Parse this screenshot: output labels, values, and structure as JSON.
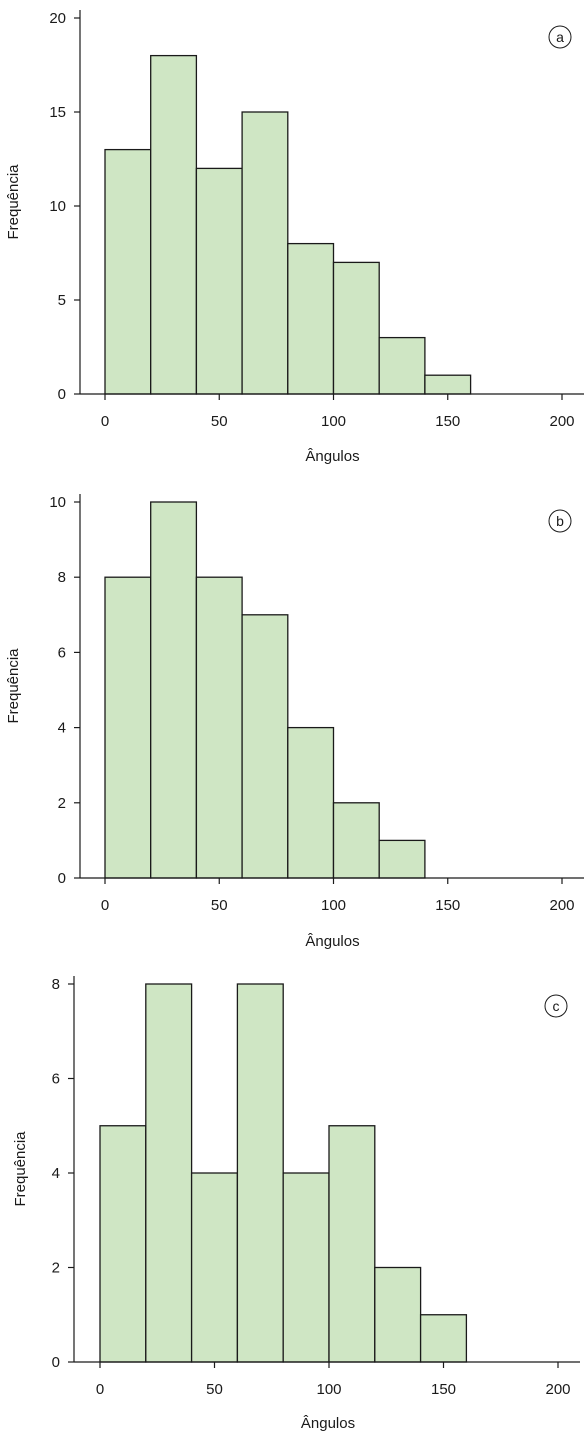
{
  "colors": {
    "bar_fill": "#cfe6c4",
    "bar_stroke": "#1a1a1a",
    "axis": "#1a1a1a"
  },
  "chart_data": [
    {
      "type": "bar",
      "panel_label": "a",
      "title": "",
      "xlabel": "Ângulos",
      "ylabel": "Frequência",
      "bin_edges": [
        0,
        20,
        40,
        60,
        80,
        100,
        120,
        140,
        160
      ],
      "values": [
        13,
        18,
        12,
        15,
        8,
        7,
        3,
        1
      ],
      "xlim": [
        -10,
        205
      ],
      "ylim": [
        0,
        20.5
      ],
      "xticks": [
        0,
        50,
        100,
        150,
        200
      ],
      "yticks": [
        0,
        5,
        10,
        15,
        20
      ],
      "xtick_labels": [
        "0",
        "50",
        "100",
        "150",
        "200"
      ],
      "ytick_labels": [
        "0",
        "5",
        "10",
        "15",
        "20"
      ],
      "grid": false,
      "legend": "none"
    },
    {
      "type": "bar",
      "panel_label": "b",
      "title": "",
      "xlabel": "Ângulos",
      "ylabel": "Frequência",
      "bin_edges": [
        0,
        20,
        40,
        60,
        80,
        100,
        120,
        140
      ],
      "values": [
        8,
        10,
        8,
        7,
        4,
        2,
        1
      ],
      "xlim": [
        -10,
        205
      ],
      "ylim": [
        0,
        10.5
      ],
      "xticks": [
        0,
        50,
        100,
        150,
        200
      ],
      "yticks": [
        0,
        2,
        4,
        6,
        8,
        10
      ],
      "xtick_labels": [
        "0",
        "50",
        "100",
        "150",
        "200"
      ],
      "ytick_labels": [
        "0",
        "2",
        "4",
        "6",
        "8",
        "10"
      ],
      "grid": false,
      "legend": "none"
    },
    {
      "type": "bar",
      "panel_label": "c",
      "title": "",
      "xlabel": "Ângulos",
      "ylabel": "Frequência",
      "bin_edges": [
        0,
        20,
        40,
        60,
        80,
        100,
        120,
        140,
        160
      ],
      "values": [
        5,
        8,
        4,
        8,
        4,
        5,
        2,
        1
      ],
      "xlim": [
        -10,
        205
      ],
      "ylim": [
        0,
        8.4
      ],
      "xticks": [
        0,
        50,
        100,
        150,
        200
      ],
      "yticks": [
        0,
        2,
        4,
        6,
        8
      ],
      "xtick_labels": [
        "0",
        "50",
        "100",
        "150",
        "200"
      ],
      "ytick_labels": [
        "0",
        "2",
        "4",
        "6",
        "8"
      ],
      "grid": false,
      "legend": "none"
    }
  ]
}
